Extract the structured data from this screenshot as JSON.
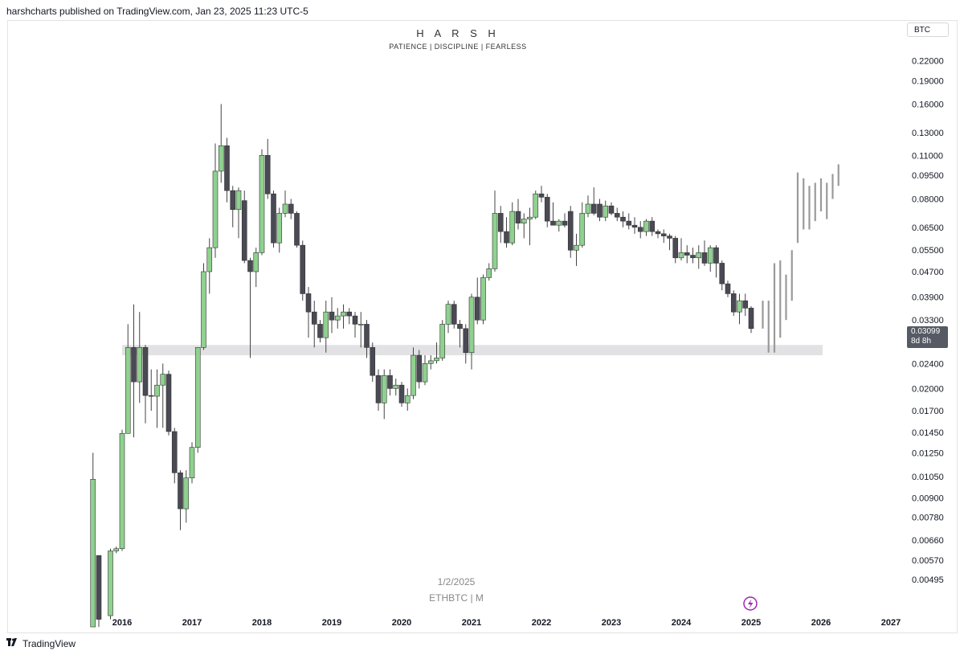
{
  "header": {
    "published_text": "harshcharts published on TradingView.com, Jan 23, 2025 11:23 UTC-5"
  },
  "overlay": {
    "title": "H A R S H",
    "subtitle": "PATIENCE  |  DISCIPLINE  |  FEARLESS",
    "watermark_date": "1/2/2025",
    "watermark_symbol": "ETHBTC | M"
  },
  "currency_label": "BTC",
  "price_tag": {
    "price": "0.03099",
    "countdown": "8d 8h"
  },
  "footer": {
    "brand": "TradingView",
    "logo_icon": "tradingview-logo-icon"
  },
  "colors": {
    "bull": "#8fd18f",
    "bear": "#4a4a55",
    "projection": "#9a9a9a",
    "zone": "#e2e2e4",
    "accent": "#9c27b0"
  },
  "chart_data": {
    "type": "candlestick",
    "symbol": "ETHBTC",
    "timeframe": "M",
    "y_scale": "log",
    "y_range": [
      0.0043,
      0.245
    ],
    "x_range": [
      "2015-07",
      "2027-03"
    ],
    "y_ticks": [
      "0.22000",
      "0.19000",
      "0.16000",
      "0.13000",
      "0.11000",
      "0.09500",
      "0.08000",
      "0.06500",
      "0.05500",
      "0.04700",
      "0.03900",
      "0.03300",
      "0.02800",
      "0.02400",
      "0.02000",
      "0.01700",
      "0.01450",
      "0.01250",
      "0.01050",
      "0.00900",
      "0.00780",
      "0.00660",
      "0.00570",
      "0.00495"
    ],
    "x_ticks": [
      "2016",
      "2017",
      "2018",
      "2019",
      "2020",
      "2021",
      "2022",
      "2023",
      "2024",
      "2025",
      "2026",
      "2027"
    ],
    "support_zone": {
      "low": 0.0255,
      "high": 0.0275,
      "from": "2016-01",
      "to": "2026-01"
    },
    "candles": [
      {
        "d": "2015-08",
        "o": 0.0035,
        "h": 0.0125,
        "l": 0.0035,
        "c": 0.0103
      },
      {
        "d": "2015-09",
        "o": 0.0059,
        "h": 0.0059,
        "l": 0.0035,
        "c": 0.0037
      },
      {
        "d": "2015-11",
        "o": 0.0038,
        "h": 0.0062,
        "l": 0.0037,
        "c": 0.0061
      },
      {
        "d": "2015-12",
        "o": 0.0061,
        "h": 0.0063,
        "l": 0.006,
        "c": 0.0062
      },
      {
        "d": "2016-01",
        "o": 0.0062,
        "h": 0.0148,
        "l": 0.0061,
        "c": 0.0144
      },
      {
        "d": "2016-02",
        "o": 0.0144,
        "h": 0.032,
        "l": 0.0144,
        "c": 0.027
      },
      {
        "d": "2016-03",
        "o": 0.027,
        "h": 0.037,
        "l": 0.014,
        "c": 0.021
      },
      {
        "d": "2016-04",
        "o": 0.021,
        "h": 0.035,
        "l": 0.018,
        "c": 0.027
      },
      {
        "d": "2016-05",
        "o": 0.027,
        "h": 0.0275,
        "l": 0.0155,
        "c": 0.019
      },
      {
        "d": "2016-06",
        "o": 0.019,
        "h": 0.023,
        "l": 0.017,
        "c": 0.0189
      },
      {
        "d": "2016-07",
        "o": 0.0189,
        "h": 0.023,
        "l": 0.015,
        "c": 0.0205
      },
      {
        "d": "2016-08",
        "o": 0.0205,
        "h": 0.024,
        "l": 0.015,
        "c": 0.0222
      },
      {
        "d": "2016-09",
        "o": 0.0222,
        "h": 0.0228,
        "l": 0.0142,
        "c": 0.0146
      },
      {
        "d": "2016-10",
        "o": 0.0146,
        "h": 0.015,
        "l": 0.01,
        "c": 0.0108
      },
      {
        "d": "2016-11",
        "o": 0.0108,
        "h": 0.011,
        "l": 0.0071,
        "c": 0.0083
      },
      {
        "d": "2016-12",
        "o": 0.0083,
        "h": 0.011,
        "l": 0.0075,
        "c": 0.0104
      },
      {
        "d": "2017-01",
        "o": 0.0104,
        "h": 0.0135,
        "l": 0.01,
        "c": 0.013
      },
      {
        "d": "2017-02",
        "o": 0.013,
        "h": 0.027,
        "l": 0.0125,
        "c": 0.027
      },
      {
        "d": "2017-03",
        "o": 0.027,
        "h": 0.05,
        "l": 0.0265,
        "c": 0.047
      },
      {
        "d": "2017-04",
        "o": 0.047,
        "h": 0.06,
        "l": 0.04,
        "c": 0.056
      },
      {
        "d": "2017-05",
        "o": 0.056,
        "h": 0.12,
        "l": 0.052,
        "c": 0.098
      },
      {
        "d": "2017-06",
        "o": 0.098,
        "h": 0.16,
        "l": 0.09,
        "c": 0.118
      },
      {
        "d": "2017-07",
        "o": 0.118,
        "h": 0.125,
        "l": 0.078,
        "c": 0.085
      },
      {
        "d": "2017-08",
        "o": 0.085,
        "h": 0.088,
        "l": 0.065,
        "c": 0.074
      },
      {
        "d": "2017-09",
        "o": 0.074,
        "h": 0.087,
        "l": 0.06,
        "c": 0.085
      },
      {
        "d": "2017-10",
        "o": 0.079,
        "h": 0.085,
        "l": 0.05,
        "c": 0.051
      },
      {
        "d": "2017-11",
        "o": 0.051,
        "h": 0.052,
        "l": 0.025,
        "c": 0.047
      },
      {
        "d": "2017-12",
        "o": 0.047,
        "h": 0.056,
        "l": 0.042,
        "c": 0.054
      },
      {
        "d": "2018-01",
        "o": 0.054,
        "h": 0.115,
        "l": 0.053,
        "c": 0.11
      },
      {
        "d": "2018-02",
        "o": 0.11,
        "h": 0.124,
        "l": 0.08,
        "c": 0.083
      },
      {
        "d": "2018-03",
        "o": 0.083,
        "h": 0.085,
        "l": 0.056,
        "c": 0.058
      },
      {
        "d": "2018-04",
        "o": 0.058,
        "h": 0.075,
        "l": 0.054,
        "c": 0.072
      },
      {
        "d": "2018-05",
        "o": 0.072,
        "h": 0.085,
        "l": 0.07,
        "c": 0.077
      },
      {
        "d": "2018-06",
        "o": 0.077,
        "h": 0.08,
        "l": 0.069,
        "c": 0.072
      },
      {
        "d": "2018-07",
        "o": 0.072,
        "h": 0.073,
        "l": 0.056,
        "c": 0.057
      },
      {
        "d": "2018-08",
        "o": 0.057,
        "h": 0.059,
        "l": 0.038,
        "c": 0.04
      },
      {
        "d": "2018-09",
        "o": 0.04,
        "h": 0.042,
        "l": 0.029,
        "c": 0.035
      },
      {
        "d": "2018-10",
        "o": 0.035,
        "h": 0.038,
        "l": 0.027,
        "c": 0.032
      },
      {
        "d": "2018-11",
        "o": 0.032,
        "h": 0.033,
        "l": 0.028,
        "c": 0.029
      },
      {
        "d": "2018-12",
        "o": 0.029,
        "h": 0.038,
        "l": 0.026,
        "c": 0.035
      },
      {
        "d": "2019-01",
        "o": 0.035,
        "h": 0.039,
        "l": 0.03,
        "c": 0.033
      },
      {
        "d": "2019-02",
        "o": 0.033,
        "h": 0.036,
        "l": 0.031,
        "c": 0.034
      },
      {
        "d": "2019-03",
        "o": 0.034,
        "h": 0.037,
        "l": 0.031,
        "c": 0.035
      },
      {
        "d": "2019-04",
        "o": 0.035,
        "h": 0.036,
        "l": 0.032,
        "c": 0.034
      },
      {
        "d": "2019-05",
        "o": 0.034,
        "h": 0.035,
        "l": 0.029,
        "c": 0.032
      },
      {
        "d": "2019-06",
        "o": 0.032,
        "h": 0.035,
        "l": 0.027,
        "c": 0.032
      },
      {
        "d": "2019-07",
        "o": 0.032,
        "h": 0.033,
        "l": 0.025,
        "c": 0.027
      },
      {
        "d": "2019-08",
        "o": 0.027,
        "h": 0.028,
        "l": 0.021,
        "c": 0.022
      },
      {
        "d": "2019-09",
        "o": 0.022,
        "h": 0.023,
        "l": 0.017,
        "c": 0.018
      },
      {
        "d": "2019-10",
        "o": 0.018,
        "h": 0.023,
        "l": 0.016,
        "c": 0.022
      },
      {
        "d": "2019-11",
        "o": 0.022,
        "h": 0.023,
        "l": 0.019,
        "c": 0.02
      },
      {
        "d": "2019-12",
        "o": 0.02,
        "h": 0.0215,
        "l": 0.019,
        "c": 0.0205
      },
      {
        "d": "2020-01",
        "o": 0.0205,
        "h": 0.021,
        "l": 0.0175,
        "c": 0.018
      },
      {
        "d": "2020-02",
        "o": 0.018,
        "h": 0.02,
        "l": 0.017,
        "c": 0.019
      },
      {
        "d": "2020-03",
        "o": 0.019,
        "h": 0.027,
        "l": 0.0185,
        "c": 0.0255
      },
      {
        "d": "2020-04",
        "o": 0.0255,
        "h": 0.0265,
        "l": 0.02,
        "c": 0.021
      },
      {
        "d": "2020-05",
        "o": 0.021,
        "h": 0.0255,
        "l": 0.0205,
        "c": 0.024
      },
      {
        "d": "2020-06",
        "o": 0.024,
        "h": 0.0255,
        "l": 0.023,
        "c": 0.0245
      },
      {
        "d": "2020-07",
        "o": 0.0245,
        "h": 0.028,
        "l": 0.024,
        "c": 0.025
      },
      {
        "d": "2020-08",
        "o": 0.025,
        "h": 0.033,
        "l": 0.0245,
        "c": 0.032
      },
      {
        "d": "2020-09",
        "o": 0.032,
        "h": 0.038,
        "l": 0.03,
        "c": 0.037
      },
      {
        "d": "2020-10",
        "o": 0.037,
        "h": 0.038,
        "l": 0.031,
        "c": 0.032
      },
      {
        "d": "2020-11",
        "o": 0.032,
        "h": 0.033,
        "l": 0.027,
        "c": 0.031
      },
      {
        "d": "2020-12",
        "o": 0.031,
        "h": 0.032,
        "l": 0.024,
        "c": 0.026
      },
      {
        "d": "2021-01",
        "o": 0.026,
        "h": 0.04,
        "l": 0.023,
        "c": 0.039
      },
      {
        "d": "2021-02",
        "o": 0.039,
        "h": 0.045,
        "l": 0.032,
        "c": 0.033
      },
      {
        "d": "2021-03",
        "o": 0.033,
        "h": 0.046,
        "l": 0.032,
        "c": 0.045
      },
      {
        "d": "2021-04",
        "o": 0.045,
        "h": 0.05,
        "l": 0.044,
        "c": 0.048
      },
      {
        "d": "2021-05",
        "o": 0.048,
        "h": 0.085,
        "l": 0.047,
        "c": 0.072
      },
      {
        "d": "2021-06",
        "o": 0.072,
        "h": 0.076,
        "l": 0.058,
        "c": 0.063
      },
      {
        "d": "2021-07",
        "o": 0.063,
        "h": 0.07,
        "l": 0.056,
        "c": 0.058
      },
      {
        "d": "2021-08",
        "o": 0.058,
        "h": 0.078,
        "l": 0.057,
        "c": 0.073
      },
      {
        "d": "2021-09",
        "o": 0.073,
        "h": 0.08,
        "l": 0.064,
        "c": 0.067
      },
      {
        "d": "2021-10",
        "o": 0.067,
        "h": 0.072,
        "l": 0.06,
        "c": 0.069
      },
      {
        "d": "2021-11",
        "o": 0.069,
        "h": 0.075,
        "l": 0.057,
        "c": 0.07
      },
      {
        "d": "2021-12",
        "o": 0.07,
        "h": 0.085,
        "l": 0.069,
        "c": 0.083
      },
      {
        "d": "2022-01",
        "o": 0.083,
        "h": 0.088,
        "l": 0.078,
        "c": 0.081
      },
      {
        "d": "2022-02",
        "o": 0.081,
        "h": 0.083,
        "l": 0.065,
        "c": 0.068
      },
      {
        "d": "2022-03",
        "o": 0.068,
        "h": 0.078,
        "l": 0.066,
        "c": 0.066
      },
      {
        "d": "2022-04",
        "o": 0.066,
        "h": 0.069,
        "l": 0.063,
        "c": 0.068
      },
      {
        "d": "2022-05",
        "o": 0.068,
        "h": 0.072,
        "l": 0.065,
        "c": 0.066
      },
      {
        "d": "2022-06",
        "o": 0.073,
        "h": 0.076,
        "l": 0.052,
        "c": 0.055
      },
      {
        "d": "2022-07",
        "o": 0.055,
        "h": 0.062,
        "l": 0.049,
        "c": 0.057
      },
      {
        "d": "2022-08",
        "o": 0.057,
        "h": 0.078,
        "l": 0.056,
        "c": 0.072
      },
      {
        "d": "2022-09",
        "o": 0.072,
        "h": 0.082,
        "l": 0.07,
        "c": 0.077
      },
      {
        "d": "2022-10",
        "o": 0.077,
        "h": 0.087,
        "l": 0.071,
        "c": 0.072
      },
      {
        "d": "2022-11",
        "o": 0.077,
        "h": 0.08,
        "l": 0.068,
        "c": 0.07
      },
      {
        "d": "2022-12",
        "o": 0.07,
        "h": 0.079,
        "l": 0.068,
        "c": 0.076
      },
      {
        "d": "2023-01",
        "o": 0.076,
        "h": 0.078,
        "l": 0.071,
        "c": 0.072
      },
      {
        "d": "2023-02",
        "o": 0.072,
        "h": 0.075,
        "l": 0.068,
        "c": 0.07
      },
      {
        "d": "2023-03",
        "o": 0.07,
        "h": 0.073,
        "l": 0.065,
        "c": 0.068
      },
      {
        "d": "2023-04",
        "o": 0.068,
        "h": 0.072,
        "l": 0.064,
        "c": 0.066
      },
      {
        "d": "2023-05",
        "o": 0.066,
        "h": 0.07,
        "l": 0.062,
        "c": 0.065
      },
      {
        "d": "2023-06",
        "o": 0.065,
        "h": 0.068,
        "l": 0.06,
        "c": 0.063
      },
      {
        "d": "2023-07",
        "o": 0.063,
        "h": 0.069,
        "l": 0.061,
        "c": 0.068
      },
      {
        "d": "2023-08",
        "o": 0.068,
        "h": 0.07,
        "l": 0.061,
        "c": 0.063
      },
      {
        "d": "2023-09",
        "o": 0.063,
        "h": 0.064,
        "l": 0.06,
        "c": 0.062
      },
      {
        "d": "2023-10",
        "o": 0.062,
        "h": 0.064,
        "l": 0.058,
        "c": 0.061
      },
      {
        "d": "2023-11",
        "o": 0.061,
        "h": 0.062,
        "l": 0.055,
        "c": 0.06
      },
      {
        "d": "2023-12",
        "o": 0.06,
        "h": 0.061,
        "l": 0.05,
        "c": 0.052
      },
      {
        "d": "2024-01",
        "o": 0.052,
        "h": 0.06,
        "l": 0.051,
        "c": 0.054
      },
      {
        "d": "2024-02",
        "o": 0.054,
        "h": 0.057,
        "l": 0.05,
        "c": 0.053
      },
      {
        "d": "2024-03",
        "o": 0.053,
        "h": 0.056,
        "l": 0.05,
        "c": 0.052
      },
      {
        "d": "2024-04",
        "o": 0.052,
        "h": 0.057,
        "l": 0.048,
        "c": 0.054
      },
      {
        "d": "2024-05",
        "o": 0.054,
        "h": 0.059,
        "l": 0.049,
        "c": 0.05
      },
      {
        "d": "2024-06",
        "o": 0.05,
        "h": 0.057,
        "l": 0.047,
        "c": 0.056
      },
      {
        "d": "2024-07",
        "o": 0.056,
        "h": 0.057,
        "l": 0.045,
        "c": 0.05
      },
      {
        "d": "2024-08",
        "o": 0.05,
        "h": 0.051,
        "l": 0.041,
        "c": 0.043
      },
      {
        "d": "2024-09",
        "o": 0.043,
        "h": 0.044,
        "l": 0.039,
        "c": 0.04
      },
      {
        "d": "2024-10",
        "o": 0.04,
        "h": 0.041,
        "l": 0.034,
        "c": 0.035
      },
      {
        "d": "2024-11",
        "o": 0.035,
        "h": 0.04,
        "l": 0.032,
        "c": 0.038
      },
      {
        "d": "2024-12",
        "o": 0.038,
        "h": 0.04,
        "l": 0.034,
        "c": 0.036
      },
      {
        "d": "2025-01",
        "o": 0.036,
        "h": 0.0365,
        "l": 0.03,
        "c": 0.031
      }
    ],
    "projection_bars": [
      {
        "d": "2025-03",
        "h": 0.038,
        "l": 0.031
      },
      {
        "d": "2025-04",
        "h": 0.038,
        "l": 0.026
      },
      {
        "d": "2025-05",
        "h": 0.05,
        "l": 0.026
      },
      {
        "d": "2025-06",
        "h": 0.051,
        "l": 0.029
      },
      {
        "d": "2025-07",
        "h": 0.046,
        "l": 0.033
      },
      {
        "d": "2025-08",
        "h": 0.055,
        "l": 0.038
      },
      {
        "d": "2025-09",
        "h": 0.097,
        "l": 0.058
      },
      {
        "d": "2025-10",
        "h": 0.093,
        "l": 0.064
      },
      {
        "d": "2025-11",
        "h": 0.088,
        "l": 0.064
      },
      {
        "d": "2025-12",
        "h": 0.09,
        "l": 0.068
      },
      {
        "d": "2026-01",
        "h": 0.093,
        "l": 0.073
      },
      {
        "d": "2026-02",
        "h": 0.09,
        "l": 0.069
      },
      {
        "d": "2026-03",
        "h": 0.096,
        "l": 0.08
      },
      {
        "d": "2026-04",
        "h": 0.103,
        "l": 0.088
      }
    ]
  }
}
